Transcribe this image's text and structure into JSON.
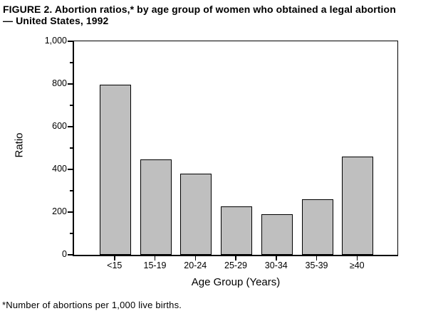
{
  "figure": {
    "title_line1": "FIGURE 2. Abortion ratios,* by age group of women who obtained a legal abortion",
    "title_line2": "— United States, 1992",
    "footnote": "*Number of abortions per 1,000 live births."
  },
  "chart_data": {
    "type": "bar",
    "title": "FIGURE 2. Abortion ratios,* by age group of women who obtained a legal abortion — United States, 1992",
    "categories": [
      "<15",
      "15-19",
      "20-24",
      "25-29",
      "30-34",
      "35-39",
      "≥40"
    ],
    "values": [
      790,
      440,
      375,
      220,
      185,
      255,
      455
    ],
    "xlabel": "Age Group (Years)",
    "ylabel": "Ratio",
    "ylim": [
      0,
      1000
    ],
    "yticks": [
      0,
      200,
      400,
      600,
      800,
      1000
    ],
    "ytick_labels": [
      "0",
      "200",
      "400",
      "600",
      "800",
      "1,000"
    ],
    "minor_yticks": [
      100,
      300,
      500,
      700,
      900
    ],
    "grid": false,
    "legend": "none",
    "bar_style": {
      "fill": "halftone-dots",
      "border_color": "#000000",
      "background": "#ffffff"
    },
    "footnote": "*Number of abortions per 1,000 live births."
  }
}
